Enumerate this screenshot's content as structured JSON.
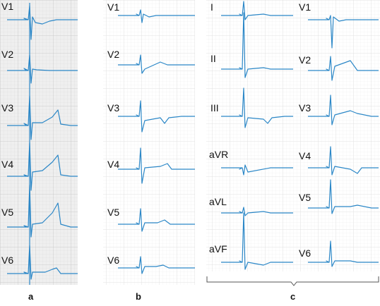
{
  "colors": {
    "trace": "#2b87c7",
    "grid_minor": "#e4e4e4",
    "grid_major": "#cfcfcf",
    "panel_a_bg": "#efefef",
    "text": "#111111",
    "bracket": "#555555"
  },
  "panels": {
    "a": {
      "label": "a",
      "leads": [
        "V1",
        "V2",
        "V3",
        "V4",
        "V5",
        "V6"
      ]
    },
    "b": {
      "label": "b",
      "leads": [
        "V1",
        "V2",
        "V3",
        "V4",
        "V5",
        "V6"
      ]
    },
    "c": {
      "label": "c",
      "limb_leads": [
        "I",
        "II",
        "III",
        "aVR",
        "aVL",
        "aVF"
      ],
      "precordial_leads": [
        "V1",
        "V2",
        "V3",
        "V4",
        "V5",
        "V6"
      ]
    }
  }
}
